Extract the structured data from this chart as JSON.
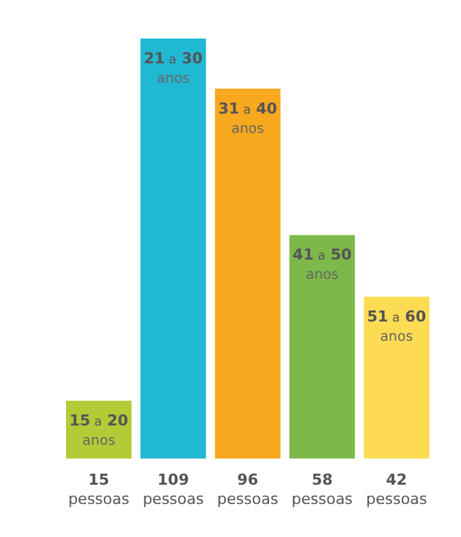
{
  "chart_data": {
    "type": "bar",
    "categories": [
      "15 a 20 anos",
      "21 a 30 anos",
      "31 a 40 anos",
      "41 a 50 anos",
      "51 a 60 anos"
    ],
    "values": [
      15,
      109,
      96,
      58,
      42
    ],
    "colors": [
      "#b3cb36",
      "#21b8d3",
      "#f6a81f",
      "#7db84a",
      "#fddc54"
    ],
    "value_labels": [
      "15 pessoas",
      "109 pessoas",
      "96 pessoas",
      "58 pessoas",
      "42 pessoas"
    ]
  }
}
